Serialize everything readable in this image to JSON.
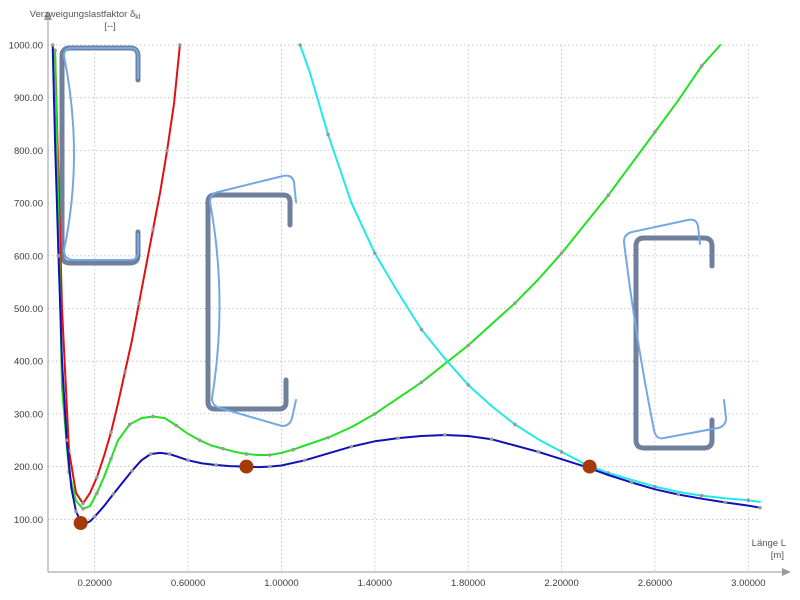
{
  "chart_data": {
    "type": "line",
    "title": "",
    "ylabel_line1": "Verzweigungslastfaktor δ",
    "ylabel_sub": "kl",
    "ylabel_unit": "[--]",
    "xlabel_line1": "Länge L",
    "xlabel_unit": "[m]",
    "xlim": [
      0.0,
      3.05
    ],
    "ylim": [
      0,
      1000
    ],
    "x_ticks": [
      0.2,
      0.6,
      1.0,
      1.4,
      1.8,
      2.2,
      2.6,
      3.0
    ],
    "x_tick_labels": [
      "0.20000",
      "0.60000",
      "1.00000",
      "1.40000",
      "1.80000",
      "2.20000",
      "2.60000",
      "3.00000"
    ],
    "y_ticks": [
      100,
      200,
      300,
      400,
      500,
      600,
      700,
      800,
      900,
      1000
    ],
    "y_tick_labels": [
      "100.00",
      "200.00",
      "300.00",
      "400.00",
      "500.00",
      "600.00",
      "700.00",
      "800.00",
      "900.00",
      "1000.00"
    ],
    "grid": true,
    "colors": {
      "red_series": "#e01010",
      "green_series": "#22e022",
      "cyan_series": "#22e8e8",
      "blue_series": "#1010b8",
      "highlight": "#a63a08",
      "section": "#73a8e4"
    },
    "series": [
      {
        "color": "red",
        "points": [
          [
            0.03,
            990
          ],
          [
            0.06,
            500
          ],
          [
            0.09,
            230
          ],
          [
            0.12,
            150
          ],
          [
            0.15,
            130
          ],
          [
            0.18,
            150
          ],
          [
            0.21,
            180
          ],
          [
            0.24,
            220
          ],
          [
            0.27,
            265
          ],
          [
            0.3,
            320
          ],
          [
            0.33,
            380
          ],
          [
            0.36,
            440
          ],
          [
            0.39,
            510
          ],
          [
            0.42,
            580
          ],
          [
            0.45,
            650
          ],
          [
            0.48,
            720
          ],
          [
            0.51,
            800
          ],
          [
            0.54,
            890
          ],
          [
            0.565,
            1000
          ]
        ]
      },
      {
        "color": "green",
        "points": [
          [
            0.03,
            990
          ],
          [
            0.06,
            350
          ],
          [
            0.09,
            190
          ],
          [
            0.12,
            135
          ],
          [
            0.15,
            120
          ],
          [
            0.18,
            125
          ],
          [
            0.21,
            150
          ],
          [
            0.24,
            180
          ],
          [
            0.27,
            215
          ],
          [
            0.3,
            250
          ],
          [
            0.35,
            280
          ],
          [
            0.4,
            292
          ],
          [
            0.45,
            295
          ],
          [
            0.5,
            292
          ],
          [
            0.55,
            278
          ],
          [
            0.6,
            262
          ],
          [
            0.65,
            250
          ],
          [
            0.7,
            240
          ],
          [
            0.75,
            234
          ],
          [
            0.8,
            228
          ],
          [
            0.85,
            224
          ],
          [
            0.9,
            222
          ],
          [
            0.95,
            222
          ],
          [
            1.0,
            226
          ],
          [
            1.05,
            232
          ],
          [
            1.1,
            240
          ],
          [
            1.2,
            255
          ],
          [
            1.3,
            275
          ],
          [
            1.4,
            300
          ],
          [
            1.5,
            330
          ],
          [
            1.6,
            360
          ],
          [
            1.7,
            395
          ],
          [
            1.8,
            430
          ],
          [
            1.9,
            470
          ],
          [
            2.0,
            510
          ],
          [
            2.1,
            555
          ],
          [
            2.2,
            605
          ],
          [
            2.3,
            660
          ],
          [
            2.4,
            715
          ],
          [
            2.5,
            775
          ],
          [
            2.6,
            835
          ],
          [
            2.7,
            895
          ],
          [
            2.8,
            960
          ],
          [
            2.88,
            1000
          ]
        ]
      },
      {
        "color": "cyan",
        "points": [
          [
            1.08,
            1000
          ],
          [
            1.12,
            950
          ],
          [
            1.2,
            830
          ],
          [
            1.3,
            700
          ],
          [
            1.4,
            605
          ],
          [
            1.5,
            530
          ],
          [
            1.6,
            460
          ],
          [
            1.7,
            405
          ],
          [
            1.8,
            355
          ],
          [
            1.9,
            315
          ],
          [
            2.0,
            280
          ],
          [
            2.1,
            252
          ],
          [
            2.2,
            228
          ],
          [
            2.3,
            205
          ],
          [
            2.4,
            188
          ],
          [
            2.5,
            175
          ],
          [
            2.6,
            162
          ],
          [
            2.7,
            152
          ],
          [
            2.8,
            145
          ],
          [
            2.9,
            140
          ],
          [
            3.0,
            136
          ],
          [
            3.05,
            133
          ]
        ]
      },
      {
        "color": "blue",
        "points": [
          [
            0.02,
            1000
          ],
          [
            0.03,
            820
          ],
          [
            0.045,
            600
          ],
          [
            0.06,
            400
          ],
          [
            0.08,
            250
          ],
          [
            0.1,
            160
          ],
          [
            0.12,
            115
          ],
          [
            0.14,
            96
          ],
          [
            0.16,
            92
          ],
          [
            0.18,
            96
          ],
          [
            0.2,
            105
          ],
          [
            0.24,
            125
          ],
          [
            0.28,
            148
          ],
          [
            0.32,
            170
          ],
          [
            0.36,
            192
          ],
          [
            0.4,
            212
          ],
          [
            0.44,
            224
          ],
          [
            0.48,
            226
          ],
          [
            0.52,
            224
          ],
          [
            0.56,
            218
          ],
          [
            0.6,
            212
          ],
          [
            0.66,
            206
          ],
          [
            0.72,
            203
          ],
          [
            0.78,
            201
          ],
          [
            0.85,
            200
          ],
          [
            0.9,
            199
          ],
          [
            0.95,
            200
          ],
          [
            1.0,
            202
          ],
          [
            1.1,
            212
          ],
          [
            1.2,
            225
          ],
          [
            1.3,
            238
          ],
          [
            1.4,
            248
          ],
          [
            1.5,
            254
          ],
          [
            1.6,
            258
          ],
          [
            1.7,
            260
          ],
          [
            1.8,
            258
          ],
          [
            1.9,
            252
          ],
          [
            2.0,
            240
          ],
          [
            2.1,
            228
          ],
          [
            2.2,
            214
          ],
          [
            2.3,
            200
          ],
          [
            2.4,
            184
          ],
          [
            2.5,
            170
          ],
          [
            2.6,
            157
          ],
          [
            2.7,
            147
          ],
          [
            2.8,
            139
          ],
          [
            2.9,
            132
          ],
          [
            3.0,
            126
          ],
          [
            3.05,
            122
          ]
        ]
      }
    ],
    "highlight_points": [
      [
        0.14,
        93
      ],
      [
        0.85,
        200
      ],
      [
        2.32,
        200
      ]
    ]
  }
}
